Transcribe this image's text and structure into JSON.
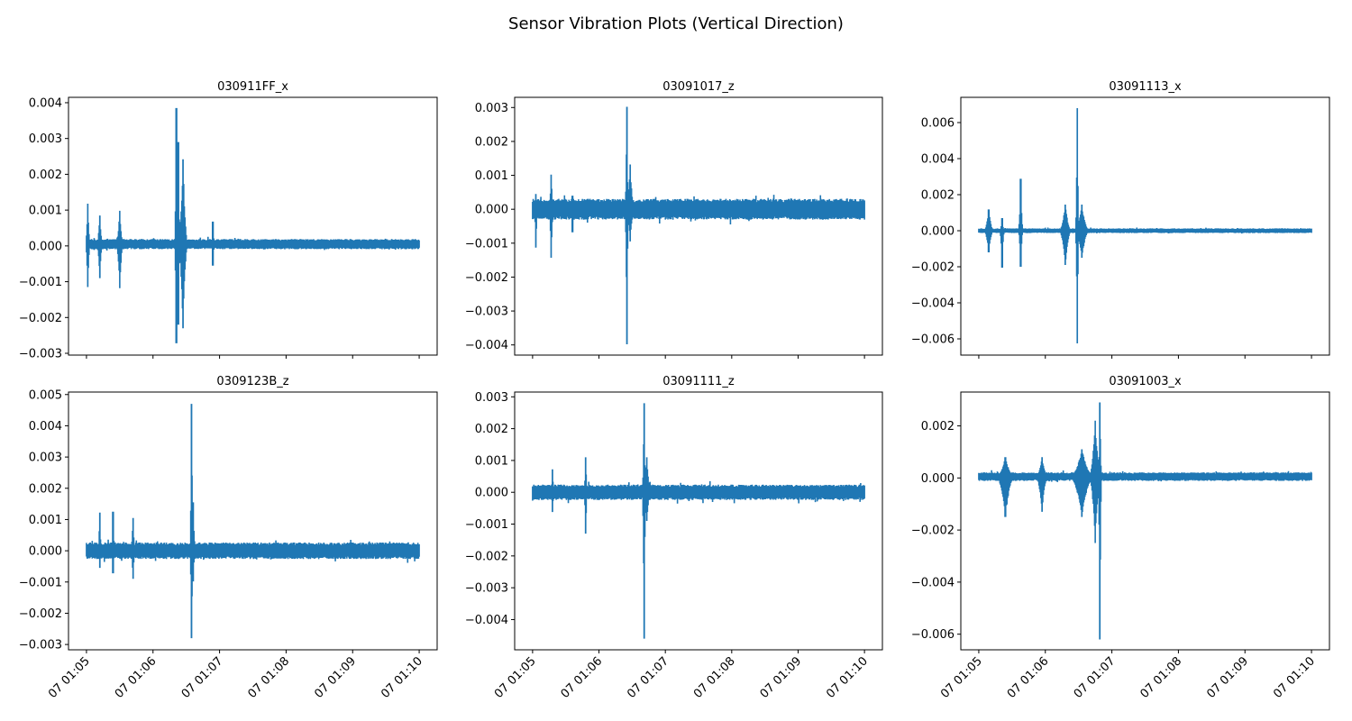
{
  "figure": {
    "title": "Sensor Vibration Plots (Vertical Direction)",
    "line_color": "#1f77b4",
    "axis_color": "#000000"
  },
  "chart_data": [
    {
      "type": "line",
      "title": "030911FF_x",
      "xlabel": "",
      "ylabel": "",
      "x_ticks": [
        "07 01:05",
        "07 01:06",
        "07 01:07",
        "07 01:08",
        "07 01:09",
        "07 01:10"
      ],
      "x_tick_labels_visible": false,
      "xlim_minutes": [
        -0.27,
        5.27
      ],
      "ylim": [
        -0.00305,
        0.00415
      ],
      "y_ticks": [
        -0.003,
        -0.002,
        -0.001,
        0.0,
        0.001,
        0.002,
        0.003,
        0.004
      ],
      "y_tick_labels": [
        "−0.003",
        "−0.002",
        "−0.001",
        "0.000",
        "0.001",
        "0.002",
        "0.003",
        "0.004"
      ],
      "baseline": 5e-05,
      "noise": 0.00013,
      "events": [
        {
          "t": 0.02,
          "hi": 0.00118,
          "lo": -0.00115,
          "dur": 0.04
        },
        {
          "t": 0.2,
          "hi": 0.00085,
          "lo": -0.0009,
          "dur": 0.05
        },
        {
          "t": 0.5,
          "hi": 0.00098,
          "lo": -0.00118,
          "dur": 0.06
        },
        {
          "t": 1.35,
          "hi": 0.00385,
          "lo": -0.00272,
          "dur": 0.03
        },
        {
          "t": 1.38,
          "hi": 0.0029,
          "lo": -0.0022,
          "dur": 0.03
        },
        {
          "t": 1.45,
          "hi": 0.00242,
          "lo": -0.0023,
          "dur": 0.08
        },
        {
          "t": 1.9,
          "hi": 0.00068,
          "lo": -0.00055,
          "dur": 0.03
        }
      ]
    },
    {
      "type": "line",
      "title": "03091017_z",
      "xlabel": "",
      "ylabel": "",
      "x_ticks": [
        "07 01:05",
        "07 01:06",
        "07 01:07",
        "07 01:08",
        "07 01:09",
        "07 01:10"
      ],
      "x_tick_labels_visible": false,
      "xlim_minutes": [
        -0.27,
        5.27
      ],
      "ylim": [
        -0.0043,
        0.0033
      ],
      "y_ticks": [
        -0.004,
        -0.003,
        -0.002,
        -0.001,
        0.0,
        0.001,
        0.002,
        0.003
      ],
      "y_tick_labels": [
        "−0.004",
        "−0.003",
        "−0.002",
        "−0.001",
        "0.000",
        "0.001",
        "0.002",
        "0.003"
      ],
      "baseline": 0.0,
      "noise": 0.00028,
      "events": [
        {
          "t": 0.05,
          "hi": 0.00045,
          "lo": -0.00113,
          "dur": 0.03
        },
        {
          "t": 0.28,
          "hi": 0.00102,
          "lo": -0.00143,
          "dur": 0.04
        },
        {
          "t": 0.6,
          "hi": 0.0004,
          "lo": -0.00068,
          "dur": 0.03
        },
        {
          "t": 1.42,
          "hi": 0.00302,
          "lo": -0.00398,
          "dur": 0.03
        },
        {
          "t": 1.47,
          "hi": 0.00132,
          "lo": -0.00095,
          "dur": 0.07
        }
      ]
    },
    {
      "type": "line",
      "title": "03091113_x",
      "xlabel": "",
      "ylabel": "",
      "x_ticks": [
        "07 01:05",
        "07 01:06",
        "07 01:07",
        "07 01:08",
        "07 01:09",
        "07 01:10"
      ],
      "x_tick_labels_visible": false,
      "xlim_minutes": [
        -0.27,
        5.27
      ],
      "ylim": [
        -0.0069,
        0.0074
      ],
      "y_ticks": [
        -0.006,
        -0.004,
        -0.002,
        0.0,
        0.002,
        0.004,
        0.006
      ],
      "y_tick_labels": [
        "−0.006",
        "−0.004",
        "−0.002",
        "0.000",
        "0.002",
        "0.004",
        "0.006"
      ],
      "baseline": 0.0,
      "noise": 0.00012,
      "events": [
        {
          "t": 0.15,
          "hi": 0.00118,
          "lo": -0.0012,
          "dur": 0.08
        },
        {
          "t": 0.35,
          "hi": 0.0007,
          "lo": -0.00205,
          "dur": 0.04
        },
        {
          "t": 0.63,
          "hi": 0.00288,
          "lo": -0.002,
          "dur": 0.04
        },
        {
          "t": 1.3,
          "hi": 0.00145,
          "lo": -0.0019,
          "dur": 0.1
        },
        {
          "t": 1.48,
          "hi": 0.0068,
          "lo": -0.00625,
          "dur": 0.03
        },
        {
          "t": 1.55,
          "hi": 0.00145,
          "lo": -0.0015,
          "dur": 0.12
        }
      ]
    },
    {
      "type": "line",
      "title": "0309123B_z",
      "xlabel": "",
      "ylabel": "",
      "x_ticks": [
        "07 01:05",
        "07 01:06",
        "07 01:07",
        "07 01:08",
        "07 01:09",
        "07 01:10"
      ],
      "x_tick_labels_visible": true,
      "xlim_minutes": [
        -0.27,
        5.27
      ],
      "ylim": [
        -0.00317,
        0.00508
      ],
      "y_ticks": [
        -0.003,
        -0.002,
        -0.001,
        0.0,
        0.001,
        0.002,
        0.003,
        0.004,
        0.005
      ],
      "y_tick_labels": [
        "−0.003",
        "−0.002",
        "−0.001",
        "0.000",
        "0.001",
        "0.002",
        "0.003",
        "0.004",
        "0.005"
      ],
      "baseline": 0.0,
      "noise": 0.00024,
      "events": [
        {
          "t": 0.2,
          "hi": 0.00122,
          "lo": -0.00055,
          "dur": 0.03
        },
        {
          "t": 0.4,
          "hi": 0.00125,
          "lo": -0.00072,
          "dur": 0.03
        },
        {
          "t": 0.7,
          "hi": 0.00105,
          "lo": -0.0009,
          "dur": 0.04
        },
        {
          "t": 1.58,
          "hi": 0.0047,
          "lo": -0.0028,
          "dur": 0.03
        },
        {
          "t": 1.6,
          "hi": 0.00155,
          "lo": -0.00098,
          "dur": 0.05
        }
      ]
    },
    {
      "type": "line",
      "title": "03091111_z",
      "xlabel": "",
      "ylabel": "",
      "x_ticks": [
        "07 01:05",
        "07 01:06",
        "07 01:07",
        "07 01:08",
        "07 01:09",
        "07 01:10"
      ],
      "x_tick_labels_visible": true,
      "xlim_minutes": [
        -0.27,
        5.27
      ],
      "ylim": [
        -0.00495,
        0.00315
      ],
      "y_ticks": [
        -0.004,
        -0.003,
        -0.002,
        -0.001,
        0.0,
        0.001,
        0.002,
        0.003
      ],
      "y_tick_labels": [
        "−0.004",
        "−0.003",
        "−0.002",
        "−0.001",
        "0.000",
        "0.001",
        "0.002",
        "0.003"
      ],
      "baseline": 0.0,
      "noise": 0.00022,
      "events": [
        {
          "t": 0.3,
          "hi": 0.00072,
          "lo": -0.00062,
          "dur": 0.03
        },
        {
          "t": 0.8,
          "hi": 0.0011,
          "lo": -0.0013,
          "dur": 0.03
        },
        {
          "t": 1.68,
          "hi": 0.0028,
          "lo": -0.0046,
          "dur": 0.03
        },
        {
          "t": 1.72,
          "hi": 0.0011,
          "lo": -0.0009,
          "dur": 0.07
        }
      ]
    },
    {
      "type": "line",
      "title": "03091003_x",
      "xlabel": "",
      "ylabel": "",
      "x_ticks": [
        "07 01:05",
        "07 01:06",
        "07 01:07",
        "07 01:08",
        "07 01:09",
        "07 01:10"
      ],
      "x_tick_labels_visible": true,
      "xlim_minutes": [
        -0.27,
        5.27
      ],
      "ylim": [
        -0.0066,
        0.0033
      ],
      "y_ticks": [
        -0.006,
        -0.004,
        -0.002,
        0.0,
        0.002
      ],
      "y_tick_labels": [
        "−0.006",
        "−0.004",
        "−0.002",
        "0.000",
        "0.002"
      ],
      "baseline": 5e-05,
      "noise": 0.00015,
      "events": [
        {
          "t": 0.4,
          "hi": 0.0008,
          "lo": -0.0015,
          "dur": 0.15
        },
        {
          "t": 0.95,
          "hi": 0.0008,
          "lo": -0.0013,
          "dur": 0.1
        },
        {
          "t": 1.55,
          "hi": 0.0011,
          "lo": -0.0015,
          "dur": 0.2
        },
        {
          "t": 1.82,
          "hi": 0.0029,
          "lo": -0.0062,
          "dur": 0.03
        },
        {
          "t": 1.75,
          "hi": 0.0022,
          "lo": -0.0025,
          "dur": 0.1
        }
      ]
    }
  ]
}
